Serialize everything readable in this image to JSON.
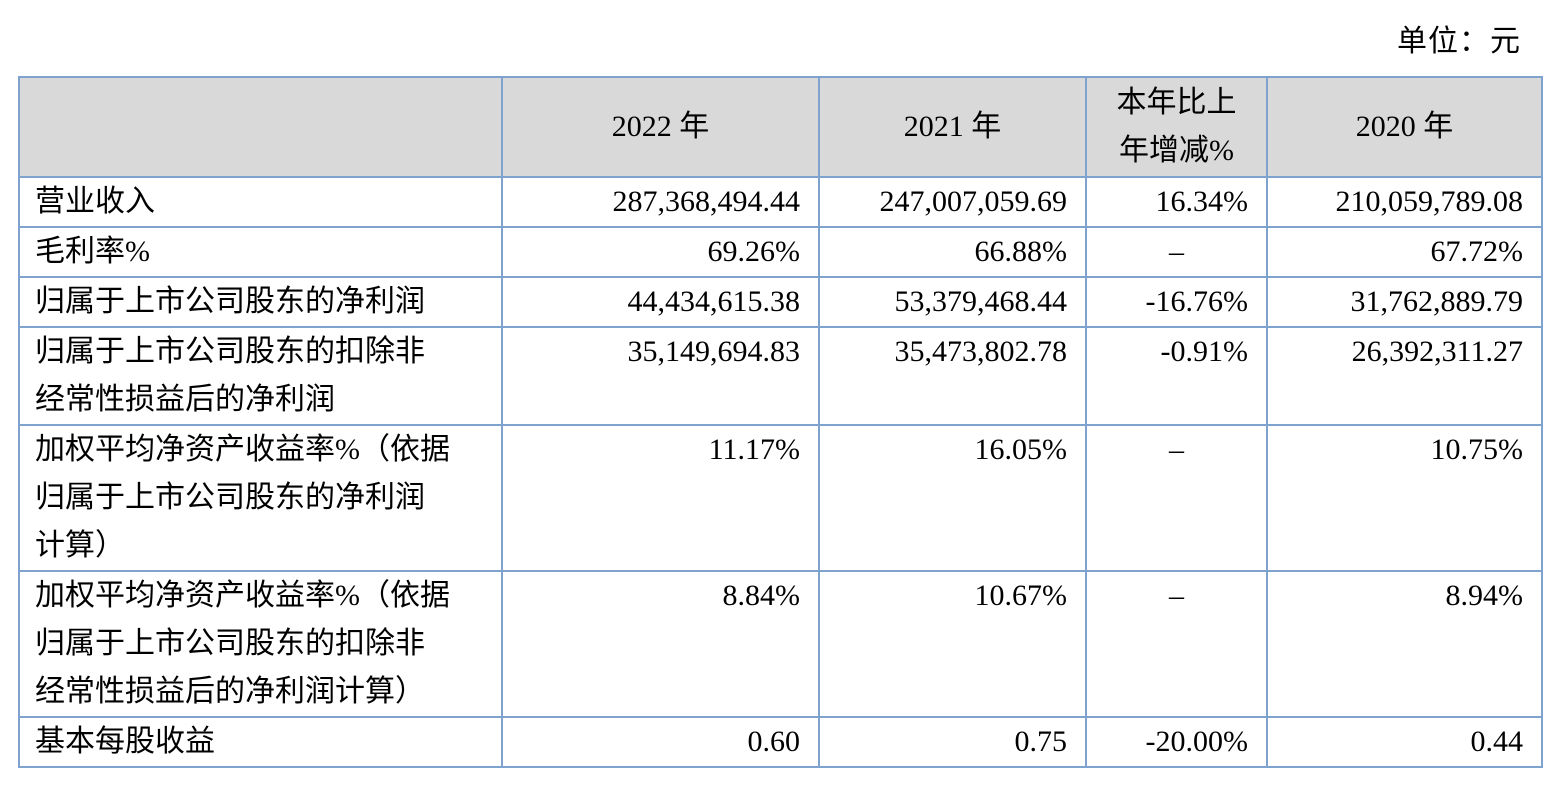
{
  "unit_label": "单位：元",
  "colors": {
    "border": "#7fa3ce",
    "header_bg": "#d9d9d9",
    "text": "#000000",
    "page_bg": "#ffffff"
  },
  "table": {
    "empty_marker": "–",
    "columns": [
      "",
      "2022 年",
      "2021 年",
      "本年比上\n年增减%",
      "2020 年"
    ],
    "rows": [
      {
        "label": "营业收入",
        "v2022": "287,368,494.44",
        "v2021": "247,007,059.69",
        "yoy": "16.34%",
        "v2020": "210,059,789.08"
      },
      {
        "label": "毛利率%",
        "v2022": "69.26%",
        "v2021": "66.88%",
        "yoy": "–",
        "v2020": "67.72%"
      },
      {
        "label": "归属于上市公司股东的净利润",
        "v2022": "44,434,615.38",
        "v2021": "53,379,468.44",
        "yoy": "-16.76%",
        "v2020": "31,762,889.79"
      },
      {
        "label": "归属于上市公司股东的扣除非\n经常性损益后的净利润",
        "v2022": "35,149,694.83",
        "v2021": "35,473,802.78",
        "yoy": "-0.91%",
        "v2020": "26,392,311.27"
      },
      {
        "label": "加权平均净资产收益率%（依据\n归属于上市公司股东的净利润\n计算）",
        "v2022": "11.17%",
        "v2021": "16.05%",
        "yoy": "–",
        "v2020": "10.75%"
      },
      {
        "label": "加权平均净资产收益率%（依据\n归属于上市公司股东的扣除非\n经常性损益后的净利润计算）",
        "v2022": "8.84%",
        "v2021": "10.67%",
        "yoy": "–",
        "v2020": "8.94%"
      },
      {
        "label": "基本每股收益",
        "v2022": "0.60",
        "v2021": "0.75",
        "yoy": "-20.00%",
        "v2020": "0.44"
      }
    ]
  }
}
